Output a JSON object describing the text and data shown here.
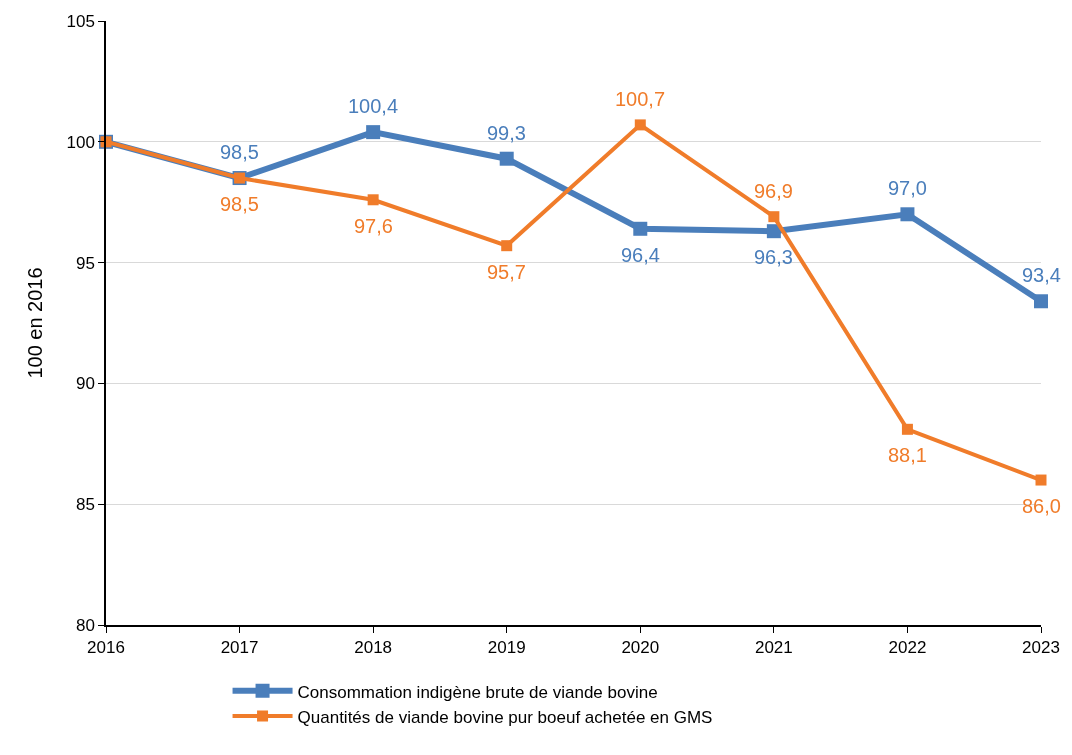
{
  "chart_data": {
    "type": "line",
    "ylabel": "100 en 2016",
    "x": [
      2016,
      2017,
      2018,
      2019,
      2020,
      2021,
      2022,
      2023
    ],
    "xlim": [
      2016,
      2023
    ],
    "xticks": [
      2016,
      2017,
      2018,
      2019,
      2020,
      2021,
      2022,
      2023
    ],
    "ylim": [
      80,
      105
    ],
    "yticks": [
      80,
      85,
      90,
      95,
      100,
      105
    ],
    "grid": "y",
    "legend": "bottom",
    "marker": "square",
    "line_style": "solid",
    "series": [
      {
        "name": "Consommation indigène brute de viande bovine",
        "color": "#4a7ebb",
        "values": [
          100,
          98.5,
          100.4,
          99.3,
          96.4,
          96.3,
          97.0,
          93.4
        ],
        "value_labels": [
          null,
          "98,5",
          "100,4",
          "99,3",
          "96,4",
          "96,3",
          "97,0",
          "93,4"
        ]
      },
      {
        "name": "Quantités de viande bovine pur boeuf achetée en GMS",
        "color": "#f07c2a",
        "values": [
          100,
          98.5,
          97.6,
          95.7,
          100.7,
          96.9,
          88.1,
          86.0
        ],
        "value_labels": [
          null,
          "98,5",
          "97,6",
          "95,7",
          "100,7",
          "96,9",
          "88,1",
          "86,0"
        ]
      }
    ]
  }
}
